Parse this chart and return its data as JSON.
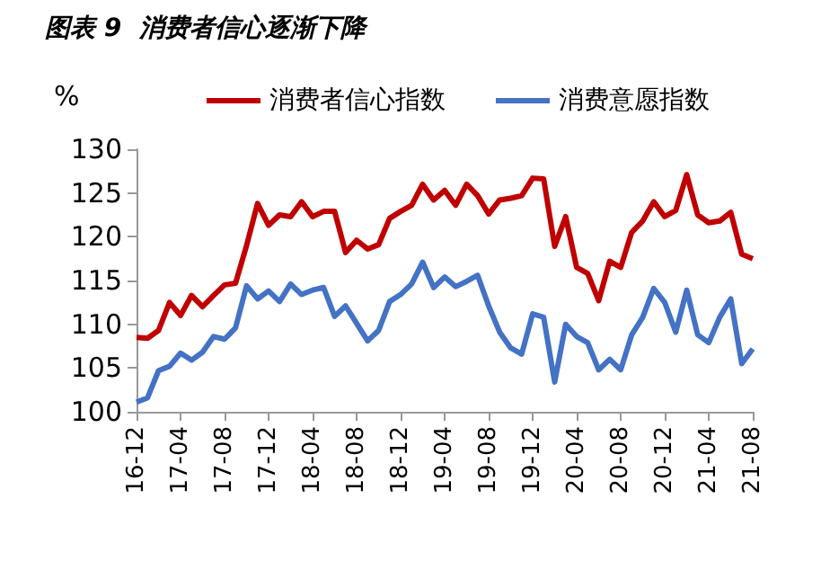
{
  "chart_data": {
    "type": "line",
    "title": "图表 9  消费者信心逐渐下降",
    "ylabel": "%",
    "categories": [
      "16-12",
      null,
      null,
      null,
      "17-04",
      null,
      null,
      null,
      "17-08",
      null,
      null,
      null,
      "17-12",
      null,
      null,
      null,
      "18-04",
      null,
      null,
      null,
      "18-08",
      null,
      null,
      null,
      "18-12",
      null,
      null,
      null,
      "19-04",
      null,
      null,
      null,
      "19-08",
      null,
      null,
      null,
      "19-12",
      null,
      null,
      null,
      "20-04",
      null,
      null,
      null,
      "20-08",
      null,
      null,
      null,
      "20-12",
      null,
      null,
      null,
      "21-04",
      null,
      null,
      null,
      "21-08"
    ],
    "series": [
      {
        "name": "消费者信心指数",
        "color": "#c00000",
        "values": [
          108.5,
          108.4,
          109.3,
          112.5,
          111,
          113.3,
          112,
          113.3,
          114.5,
          114.7,
          119,
          123.8,
          121.3,
          122.5,
          122.3,
          124,
          122.3,
          122.9,
          122.9,
          118.2,
          119.6,
          118.6,
          119.1,
          122.1,
          122.9,
          123.6,
          126,
          124.2,
          125.3,
          123.6,
          126,
          124.7,
          122.6,
          124.2,
          124.4,
          124.7,
          126.7,
          126.6,
          118.9,
          122.3,
          116.5,
          115.8,
          112.7,
          117.2,
          116.5,
          120.5,
          121.8,
          124,
          122.3,
          123,
          127.1,
          122.5,
          121.6,
          121.8,
          122.8,
          118,
          117.5
        ]
      },
      {
        "name": "消费意愿指数",
        "color": "#4472c4",
        "values": [
          101.1,
          101.6,
          104.7,
          105.2,
          106.7,
          105.9,
          106.8,
          108.6,
          108.3,
          109.6,
          114.4,
          112.9,
          113.8,
          112.6,
          114.6,
          113.4,
          113.9,
          114.2,
          110.9,
          112.1,
          110.1,
          108.1,
          109.3,
          112.6,
          113.4,
          114.6,
          117.1,
          114.2,
          115.4,
          114.3,
          114.9,
          115.6,
          112.1,
          109.1,
          107.3,
          106.6,
          111.2,
          110.8,
          103.4,
          110,
          108.6,
          107.9,
          104.8,
          106,
          104.8,
          108.8,
          110.8,
          114.1,
          112.5,
          109.1,
          113.9,
          108.8,
          107.9,
          110.8,
          112.9,
          105.5,
          107.2
        ]
      }
    ],
    "ylim": [
      100,
      130
    ],
    "yticks": [
      100,
      105,
      110,
      115,
      120,
      125,
      130
    ],
    "grid": false,
    "legend": "top",
    "marker": "none",
    "line_style": "solid"
  }
}
